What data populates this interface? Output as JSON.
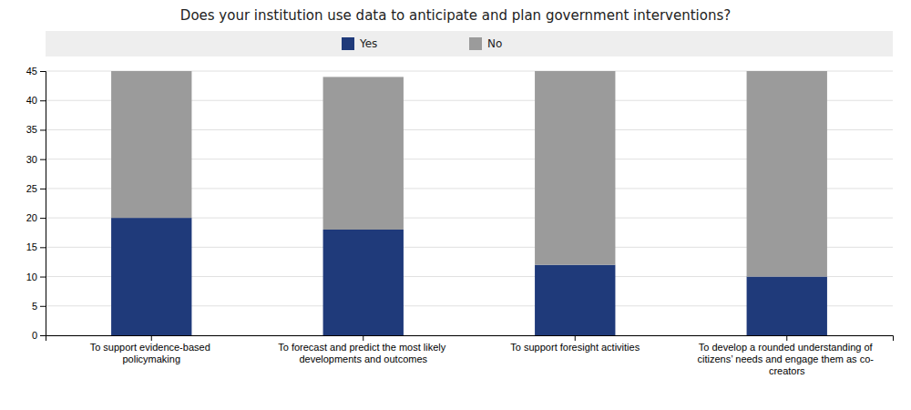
{
  "chart_data": {
    "type": "bar",
    "title": "Does your institution use data to anticipate and plan government interventions?",
    "categories": [
      "To support evidence-based\npolicymaking",
      "To forecast and predict the most likely\ndevelopments and outcomes",
      "To support foresight activities",
      "To develop a rounded understanding of\ncitizens’ needs and engage them as co-\ncreators"
    ],
    "series": [
      {
        "name": "Yes",
        "color": "#1F3A7A",
        "values": [
          20,
          18,
          12,
          10
        ]
      },
      {
        "name": "No",
        "color": "#9B9B9B",
        "values": [
          25,
          26,
          33,
          35
        ]
      }
    ],
    "stacked": true,
    "ylim": [
      0,
      45
    ],
    "yticks": [
      0,
      5,
      10,
      15,
      20,
      25,
      30,
      35,
      40,
      45
    ],
    "grid": true,
    "legend": "top"
  }
}
